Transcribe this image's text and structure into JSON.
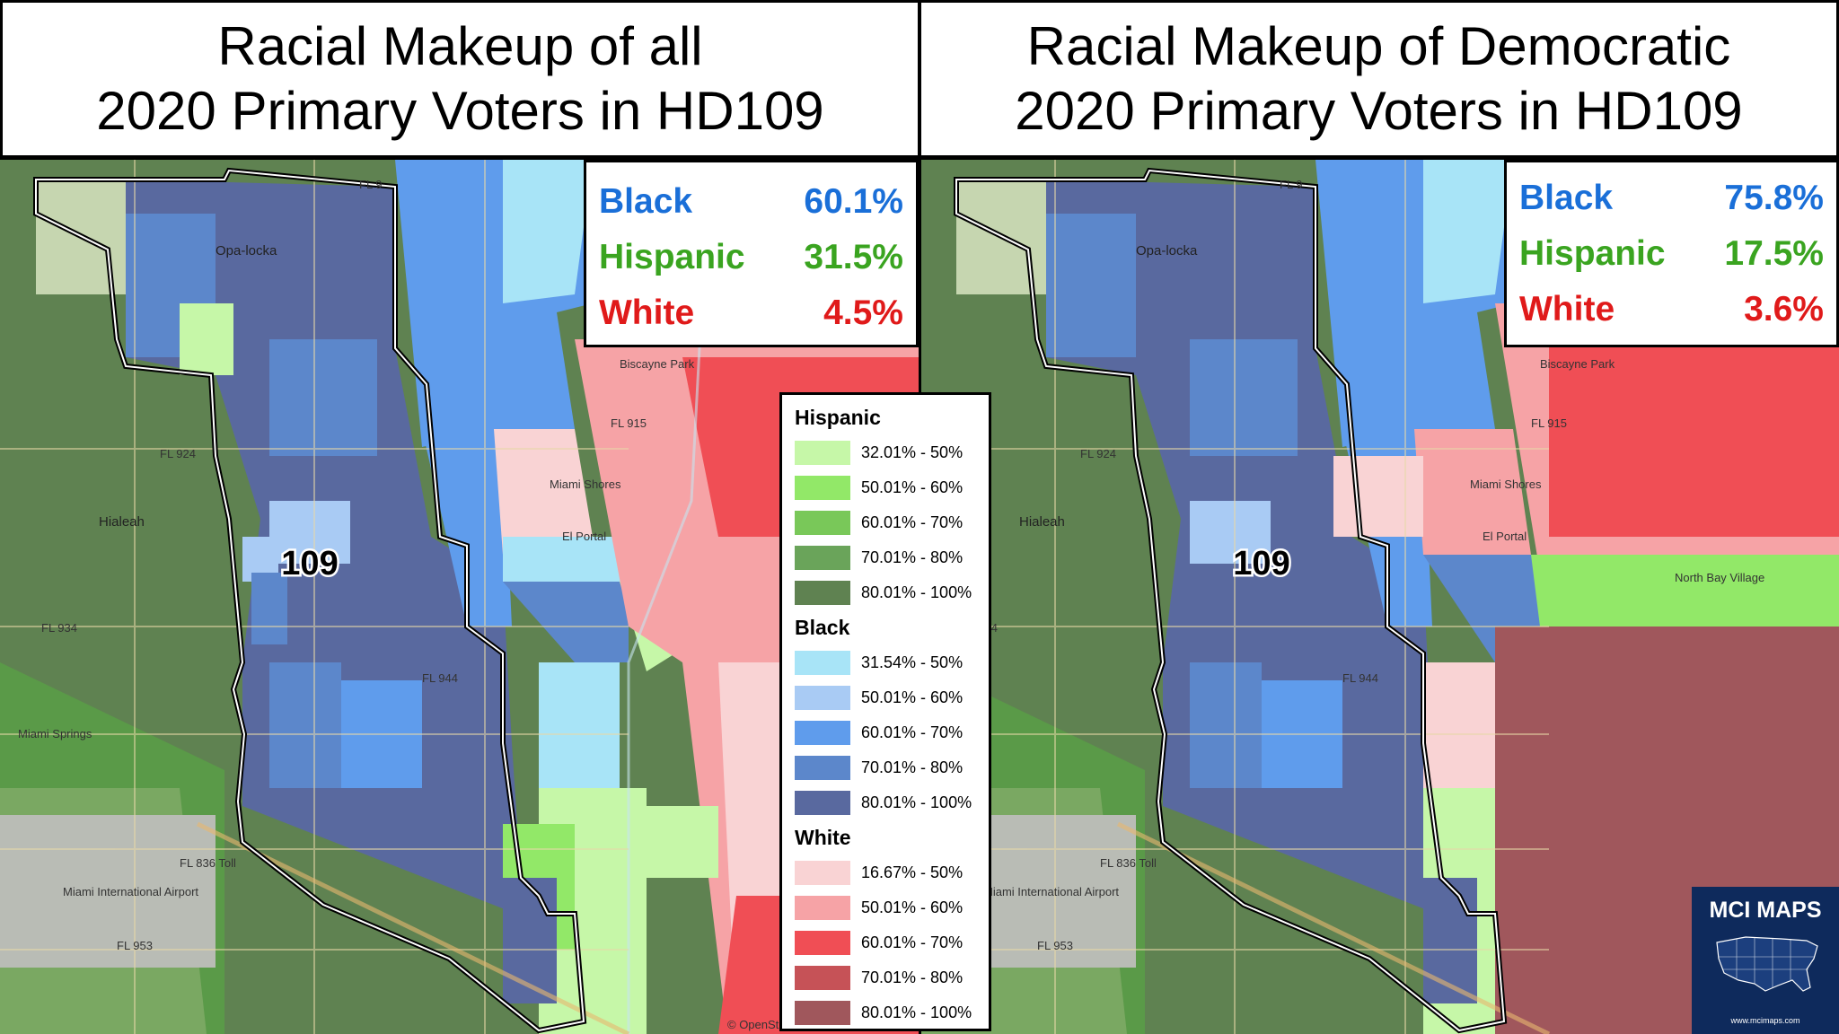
{
  "titles": {
    "left": {
      "line1": "Racial Makeup of all",
      "line2": "2020 Primary Voters in HD109"
    },
    "right": {
      "line1": "Racial Makeup of Democratic",
      "line2": "2020 Primary Voters in HD109"
    }
  },
  "stats": {
    "left": {
      "black": {
        "label": "Black",
        "value": "60.1%"
      },
      "hispanic": {
        "label": "Hispanic",
        "value": "31.5%"
      },
      "white": {
        "label": "White",
        "value": "4.5%"
      }
    },
    "right": {
      "black": {
        "label": "Black",
        "value": "75.8%"
      },
      "hispanic": {
        "label": "Hispanic",
        "value": "17.5%"
      },
      "white": {
        "label": "White",
        "value": "3.6%"
      }
    }
  },
  "district_label": "109",
  "legend": {
    "hispanic": {
      "title": "Hispanic",
      "items": [
        {
          "range": "32.01% - 50%",
          "color": "#c6f7a8"
        },
        {
          "range": "50.01% - 60%",
          "color": "#92e868"
        },
        {
          "range": "60.01% - 70%",
          "color": "#79c859"
        },
        {
          "range": "70.01% - 80%",
          "color": "#6aa45a"
        },
        {
          "range": "80.01% - 100%",
          "color": "#5f8251"
        }
      ]
    },
    "black": {
      "title": "Black",
      "items": [
        {
          "range": "31.54% - 50%",
          "color": "#a8e4f7"
        },
        {
          "range": "50.01% - 60%",
          "color": "#a9cbf4"
        },
        {
          "range": "60.01% - 70%",
          "color": "#5f9cec"
        },
        {
          "range": "70.01% - 80%",
          "color": "#5c87cb"
        },
        {
          "range": "80.01% - 100%",
          "color": "#59699f"
        }
      ]
    },
    "white": {
      "title": "White",
      "items": [
        {
          "range": "16.67% - 50%",
          "color": "#f9d3d4"
        },
        {
          "range": "50.01% - 60%",
          "color": "#f6a3a6"
        },
        {
          "range": "60.01% - 70%",
          "color": "#f04e55"
        },
        {
          "range": "70.01% - 80%",
          "color": "#c65257"
        },
        {
          "range": "80.01% - 100%",
          "color": "#a0575c"
        }
      ]
    }
  },
  "map_labels": {
    "opa_locka": "Opa-locka",
    "hialeah": "Hialeah",
    "miami_shores": "Miami Shores",
    "el_portal": "El Portal",
    "biscayne_park": "Biscayne Park",
    "miami_springs": "Miami Springs",
    "north_bay_village": "North Bay Village",
    "airport": "Miami International Airport",
    "fl924": "FL 924",
    "fl944": "FL 944",
    "fl953": "FL 953",
    "fl836": "FL 836 Toll",
    "fl9": "FL 9",
    "fl915": "FL 915",
    "fl934": "FL 934",
    "attribution": "© OpenStreetMap"
  },
  "branding": {
    "name": "MCI MAPS",
    "url": "www.mcimaps.com"
  },
  "colors": {
    "black_text": "#1a6fd8",
    "hispanic_text": "#3aa420",
    "white_text": "#e01a1a"
  }
}
